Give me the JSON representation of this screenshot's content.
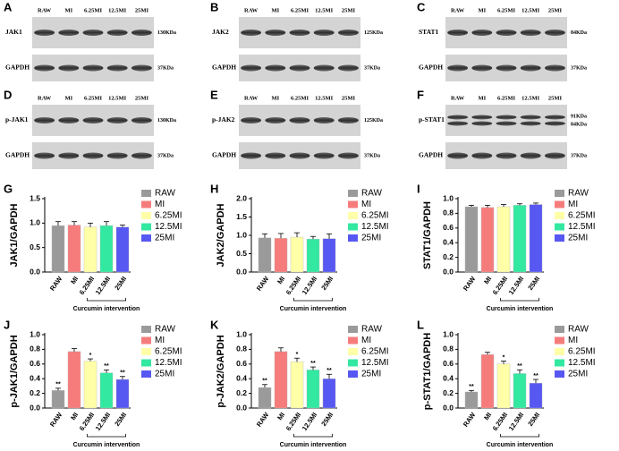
{
  "blots": [
    {
      "letter": "A",
      "lanes": [
        "RAW",
        "MI",
        "6.25MI",
        "12.5MI",
        "25MI"
      ],
      "rows": [
        {
          "label": "JAK1",
          "sizes": [
            "130KDa"
          ]
        },
        {
          "label": "GAPDH",
          "sizes": [
            "37KDa"
          ]
        }
      ]
    },
    {
      "letter": "B",
      "lanes": [
        "RAW",
        "MI",
        "6.25MI",
        "12.5MI",
        "25MI"
      ],
      "rows": [
        {
          "label": "JAK2",
          "sizes": [
            "125KDa"
          ]
        },
        {
          "label": "GAPDH",
          "sizes": [
            "37KDa"
          ]
        }
      ]
    },
    {
      "letter": "C",
      "lanes": [
        "RAW",
        "MI",
        "6.25MI",
        "12.5MI",
        "25MI"
      ],
      "rows": [
        {
          "label": "STAT1",
          "sizes": [
            "84KDa"
          ]
        },
        {
          "label": "GAPDH",
          "sizes": [
            "37KDa"
          ]
        }
      ]
    },
    {
      "letter": "D",
      "lanes": [
        "RAW",
        "MI",
        "6.25MI",
        "12.5MI",
        "25MI"
      ],
      "rows": [
        {
          "label": "p-JAK1",
          "sizes": [
            "130KDa"
          ]
        },
        {
          "label": "GAPDH",
          "sizes": [
            "37KDa"
          ]
        }
      ]
    },
    {
      "letter": "E",
      "lanes": [
        "RAW",
        "MI",
        "6.25MI",
        "12.5MI",
        "25MI"
      ],
      "rows": [
        {
          "label": "p-JAK2",
          "sizes": [
            "125KDa"
          ]
        },
        {
          "label": "GAPDH",
          "sizes": [
            "37KDa"
          ]
        }
      ]
    },
    {
      "letter": "F",
      "lanes": [
        "RAW",
        "MI",
        "6.25MI",
        "12.5MI",
        "25MI"
      ],
      "rows": [
        {
          "label": "p-STAT1",
          "sizes": [
            "91KDa",
            "84KDa"
          ]
        },
        {
          "label": "GAPDH",
          "sizes": [
            "37KDa"
          ]
        }
      ]
    }
  ],
  "chart_data": [
    {
      "type": "bar",
      "panel": "G",
      "y_label": "JAK1/GAPDH",
      "categories": [
        "RAW",
        "MI",
        "6.25MI",
        "12.5MI",
        "25MI"
      ],
      "colors": [
        "#9a9a9a",
        "#f67c7c",
        "#ffffa8",
        "#33e8a0",
        "#5757f2"
      ],
      "values": [
        0.95,
        0.96,
        0.92,
        0.95,
        0.92
      ],
      "errors": [
        0.08,
        0.07,
        0.08,
        0.08,
        0.04
      ],
      "significance": [
        null,
        null,
        null,
        null,
        null
      ],
      "ylim": [
        0,
        1.5
      ],
      "yticks": [
        {
          "value": 0,
          "label": "0.0"
        },
        0.5,
        {
          "value": 1,
          "label": "1.0"
        },
        1.5
      ],
      "bracket_label": "Curcumin intervention",
      "legend": "right"
    },
    {
      "type": "bar",
      "panel": "H",
      "y_label": "JAK2/GAPDH",
      "categories": [
        "RAW",
        "MI",
        "6.25MI",
        "12.5MI",
        "25MI"
      ],
      "colors": [
        "#9a9a9a",
        "#f67c7c",
        "#ffffa8",
        "#33e8a0",
        "#5757f2"
      ],
      "values": [
        0.93,
        0.92,
        0.95,
        0.9,
        0.91
      ],
      "errors": [
        0.11,
        0.13,
        0.12,
        0.07,
        0.13
      ],
      "significance": [
        null,
        null,
        null,
        null,
        null
      ],
      "ylim": [
        0,
        2
      ],
      "yticks": [
        {
          "value": 0,
          "label": "0.0"
        },
        0.5,
        {
          "value": 1,
          "label": "1.0"
        },
        1.5,
        {
          "value": 2,
          "label": "2.0"
        }
      ],
      "bracket_label": "Curcumin intervention",
      "legend": "right"
    },
    {
      "type": "bar",
      "panel": "I",
      "y_label": "STAT1/GAPDH",
      "categories": [
        "RAW",
        "MI",
        "6.25MI",
        "12.5MI",
        "25MI"
      ],
      "colors": [
        "#9a9a9a",
        "#f67c7c",
        "#ffffa8",
        "#33e8a0",
        "#5757f2"
      ],
      "values": [
        0.89,
        0.88,
        0.89,
        0.91,
        0.92
      ],
      "errors": [
        0.02,
        0.03,
        0.03,
        0.02,
        0.02
      ],
      "significance": [
        null,
        null,
        null,
        null,
        null
      ],
      "ylim": [
        0,
        1
      ],
      "yticks": [
        {
          "value": 0,
          "label": "0.0"
        },
        0.2,
        0.4,
        0.6,
        0.8,
        {
          "value": 1,
          "label": "1.0"
        }
      ],
      "bracket_label": "Curcumin intervention",
      "legend": "right"
    },
    {
      "type": "bar",
      "panel": "J",
      "y_label": "p-JAK1/GAPDH",
      "categories": [
        "RAW",
        "MI",
        "6.25MI",
        "12.5MI",
        "25MI"
      ],
      "colors": [
        "#9a9a9a",
        "#f67c7c",
        "#ffffa8",
        "#33e8a0",
        "#5757f2"
      ],
      "values": [
        0.24,
        0.77,
        0.64,
        0.48,
        0.39
      ],
      "errors": [
        0.03,
        0.04,
        0.03,
        0.04,
        0.04
      ],
      "significance": [
        "**",
        null,
        "*",
        "**",
        "**"
      ],
      "ylim": [
        0,
        1
      ],
      "yticks": [
        {
          "value": 0,
          "label": "0.0"
        },
        0.2,
        0.4,
        0.6,
        0.8,
        {
          "value": 1,
          "label": "1.0"
        }
      ],
      "bracket_label": "Curcumin intervention",
      "legend": "right"
    },
    {
      "type": "bar",
      "panel": "K",
      "y_label": "p-JAK2/GAPDH",
      "categories": [
        "RAW",
        "MI",
        "6.25MI",
        "12.5MI",
        "25MI"
      ],
      "colors": [
        "#9a9a9a",
        "#f67c7c",
        "#ffffa8",
        "#33e8a0",
        "#5757f2"
      ],
      "values": [
        0.28,
        0.77,
        0.63,
        0.52,
        0.4
      ],
      "errors": [
        0.04,
        0.05,
        0.05,
        0.04,
        0.06
      ],
      "significance": [
        "**",
        null,
        "*",
        "**",
        "**"
      ],
      "ylim": [
        0,
        1
      ],
      "yticks": [
        {
          "value": 0,
          "label": "0.0"
        },
        0.2,
        0.4,
        0.6,
        0.8,
        {
          "value": 1,
          "label": "1.0"
        }
      ],
      "bracket_label": "Curcumin intervention",
      "legend": "right"
    },
    {
      "type": "bar",
      "panel": "L",
      "y_label": "p-STAT1/GAPDH",
      "categories": [
        "RAW",
        "MI",
        "6.25MI",
        "12.5MI",
        "25MI"
      ],
      "colors": [
        "#9a9a9a",
        "#f67c7c",
        "#ffffa8",
        "#33e8a0",
        "#5757f2"
      ],
      "values": [
        0.22,
        0.73,
        0.6,
        0.47,
        0.34
      ],
      "errors": [
        0.02,
        0.03,
        0.04,
        0.05,
        0.05
      ],
      "significance": [
        "**",
        null,
        "*",
        "**",
        "**"
      ],
      "ylim": [
        0,
        1
      ],
      "yticks": [
        {
          "value": 0,
          "label": "0.0"
        },
        0.2,
        0.4,
        0.6,
        0.8,
        {
          "value": 1,
          "label": "1.0"
        }
      ],
      "bracket_label": "Curcumin intervention",
      "legend": "right"
    }
  ]
}
